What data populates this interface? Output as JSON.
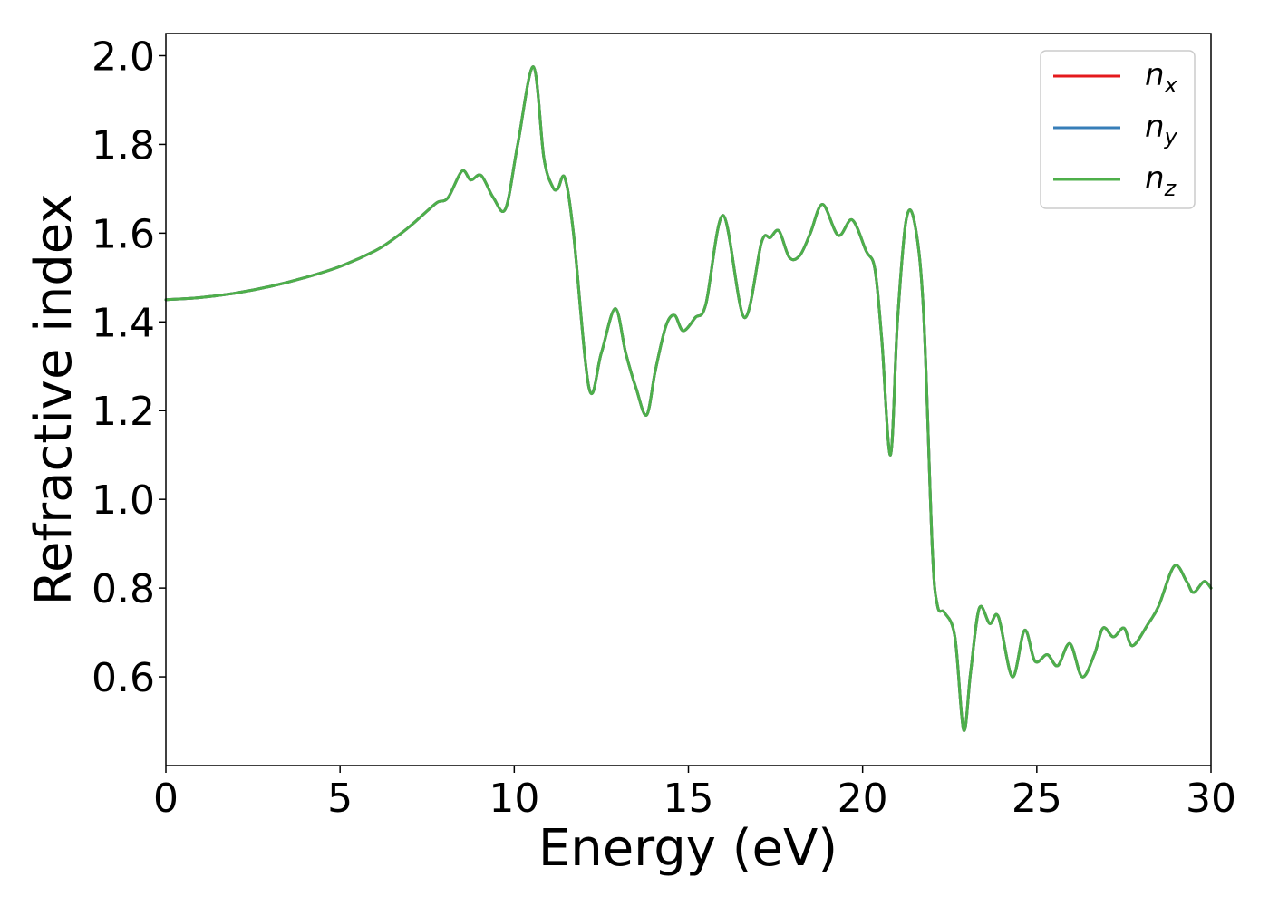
{
  "chart_data": {
    "type": "line",
    "title": "",
    "xlabel": "Energy (eV)",
    "ylabel": "Refractive index",
    "xlim": [
      0,
      30
    ],
    "ylim": [
      0.4,
      2.05
    ],
    "xticks": [
      0,
      5,
      10,
      15,
      20,
      25,
      30
    ],
    "xtick_labels": [
      "0",
      "5",
      "10",
      "15",
      "20",
      "25",
      "30"
    ],
    "yticks": [
      0.6,
      0.8,
      1.0,
      1.2,
      1.4,
      1.6,
      1.8,
      2.0
    ],
    "ytick_labels": [
      "0.6",
      "0.8",
      "1.0",
      "1.2",
      "1.4",
      "1.6",
      "1.8",
      "2.0"
    ],
    "grid": false,
    "legend_position": "top-right",
    "series": [
      {
        "name": "n",
        "subscript": "x",
        "color": "#e41a1c",
        "x": [
          0,
          1,
          2,
          3,
          4,
          5,
          6,
          6.5,
          7,
          7.5,
          7.8,
          8.1,
          8.5,
          8.75,
          9.05,
          9.4,
          9.75,
          10.1,
          10.55,
          10.85,
          11.1,
          11.25,
          11.45,
          11.7,
          12.15,
          12.5,
          12.9,
          13.2,
          13.5,
          13.8,
          14.05,
          14.35,
          14.6,
          14.85,
          15.2,
          15.5,
          16.0,
          16.6,
          17.1,
          17.35,
          17.6,
          17.9,
          18.2,
          18.5,
          18.85,
          19.3,
          19.7,
          20.1,
          20.35,
          20.55,
          20.8,
          21.0,
          21.25,
          21.5,
          21.75,
          22.0,
          22.15,
          22.35,
          22.65,
          22.9,
          23.1,
          23.35,
          23.65,
          23.9,
          24.3,
          24.65,
          24.95,
          25.3,
          25.6,
          25.95,
          26.3,
          26.65,
          26.9,
          27.2,
          27.5,
          27.75,
          28.2,
          28.5,
          28.95,
          29.3,
          29.5,
          29.8,
          30
        ],
        "values": [
          1.45,
          1.455,
          1.465,
          1.48,
          1.5,
          1.525,
          1.56,
          1.585,
          1.615,
          1.65,
          1.67,
          1.68,
          1.74,
          1.72,
          1.73,
          1.68,
          1.655,
          1.8,
          1.975,
          1.77,
          1.705,
          1.7,
          1.725,
          1.6,
          1.25,
          1.33,
          1.43,
          1.33,
          1.25,
          1.19,
          1.29,
          1.39,
          1.415,
          1.38,
          1.41,
          1.44,
          1.64,
          1.41,
          1.58,
          1.59,
          1.605,
          1.545,
          1.55,
          1.6,
          1.665,
          1.595,
          1.63,
          1.56,
          1.52,
          1.36,
          1.1,
          1.4,
          1.63,
          1.62,
          1.42,
          0.89,
          0.76,
          0.745,
          0.69,
          0.48,
          0.61,
          0.755,
          0.72,
          0.735,
          0.6,
          0.705,
          0.635,
          0.65,
          0.625,
          0.675,
          0.6,
          0.65,
          0.71,
          0.69,
          0.71,
          0.67,
          0.72,
          0.76,
          0.85,
          0.815,
          0.79,
          0.815,
          0.8
        ]
      },
      {
        "name": "n",
        "subscript": "y",
        "color": "#377eb8",
        "x": [
          0,
          1,
          2,
          3,
          4,
          5,
          6,
          6.5,
          7,
          7.5,
          7.8,
          8.1,
          8.5,
          8.75,
          9.05,
          9.4,
          9.75,
          10.1,
          10.55,
          10.85,
          11.1,
          11.25,
          11.45,
          11.7,
          12.15,
          12.5,
          12.9,
          13.2,
          13.5,
          13.8,
          14.05,
          14.35,
          14.6,
          14.85,
          15.2,
          15.5,
          16.0,
          16.6,
          17.1,
          17.35,
          17.6,
          17.9,
          18.2,
          18.5,
          18.85,
          19.3,
          19.7,
          20.1,
          20.35,
          20.55,
          20.8,
          21.0,
          21.25,
          21.5,
          21.75,
          22.0,
          22.15,
          22.35,
          22.65,
          22.9,
          23.1,
          23.35,
          23.65,
          23.9,
          24.3,
          24.65,
          24.95,
          25.3,
          25.6,
          25.95,
          26.3,
          26.65,
          26.9,
          27.2,
          27.5,
          27.75,
          28.2,
          28.5,
          28.95,
          29.3,
          29.5,
          29.8,
          30
        ],
        "values": [
          1.45,
          1.455,
          1.465,
          1.48,
          1.5,
          1.525,
          1.56,
          1.585,
          1.615,
          1.65,
          1.67,
          1.68,
          1.74,
          1.72,
          1.73,
          1.68,
          1.655,
          1.8,
          1.975,
          1.77,
          1.705,
          1.7,
          1.725,
          1.6,
          1.25,
          1.33,
          1.43,
          1.33,
          1.25,
          1.19,
          1.29,
          1.39,
          1.415,
          1.38,
          1.41,
          1.44,
          1.64,
          1.41,
          1.58,
          1.59,
          1.605,
          1.545,
          1.55,
          1.6,
          1.665,
          1.595,
          1.63,
          1.56,
          1.52,
          1.36,
          1.1,
          1.4,
          1.63,
          1.62,
          1.42,
          0.89,
          0.76,
          0.745,
          0.69,
          0.48,
          0.61,
          0.755,
          0.72,
          0.735,
          0.6,
          0.705,
          0.635,
          0.65,
          0.625,
          0.675,
          0.6,
          0.65,
          0.71,
          0.69,
          0.71,
          0.67,
          0.72,
          0.76,
          0.85,
          0.815,
          0.79,
          0.815,
          0.8
        ]
      },
      {
        "name": "n",
        "subscript": "z",
        "color": "#4daf4a",
        "x": [
          0,
          1,
          2,
          3,
          4,
          5,
          6,
          6.5,
          7,
          7.5,
          7.8,
          8.1,
          8.5,
          8.75,
          9.05,
          9.4,
          9.75,
          10.1,
          10.55,
          10.85,
          11.1,
          11.25,
          11.45,
          11.7,
          12.15,
          12.5,
          12.9,
          13.2,
          13.5,
          13.8,
          14.05,
          14.35,
          14.6,
          14.85,
          15.2,
          15.5,
          16.0,
          16.6,
          17.1,
          17.35,
          17.6,
          17.9,
          18.2,
          18.5,
          18.85,
          19.3,
          19.7,
          20.1,
          20.35,
          20.55,
          20.8,
          21.0,
          21.25,
          21.5,
          21.75,
          22.0,
          22.15,
          22.35,
          22.65,
          22.9,
          23.1,
          23.35,
          23.65,
          23.9,
          24.3,
          24.65,
          24.95,
          25.3,
          25.6,
          25.95,
          26.3,
          26.65,
          26.9,
          27.2,
          27.5,
          27.75,
          28.2,
          28.5,
          28.95,
          29.3,
          29.5,
          29.8,
          30
        ],
        "values": [
          1.45,
          1.455,
          1.465,
          1.48,
          1.5,
          1.525,
          1.56,
          1.585,
          1.615,
          1.65,
          1.67,
          1.68,
          1.74,
          1.72,
          1.73,
          1.68,
          1.655,
          1.8,
          1.975,
          1.77,
          1.705,
          1.7,
          1.725,
          1.6,
          1.25,
          1.33,
          1.43,
          1.33,
          1.25,
          1.19,
          1.29,
          1.39,
          1.415,
          1.38,
          1.41,
          1.44,
          1.64,
          1.41,
          1.58,
          1.59,
          1.605,
          1.545,
          1.55,
          1.6,
          1.665,
          1.595,
          1.63,
          1.56,
          1.52,
          1.36,
          1.1,
          1.4,
          1.63,
          1.62,
          1.42,
          0.89,
          0.76,
          0.745,
          0.69,
          0.48,
          0.61,
          0.755,
          0.72,
          0.735,
          0.6,
          0.705,
          0.635,
          0.65,
          0.625,
          0.675,
          0.6,
          0.65,
          0.71,
          0.69,
          0.71,
          0.67,
          0.72,
          0.76,
          0.85,
          0.815,
          0.79,
          0.815,
          0.8
        ]
      }
    ]
  }
}
